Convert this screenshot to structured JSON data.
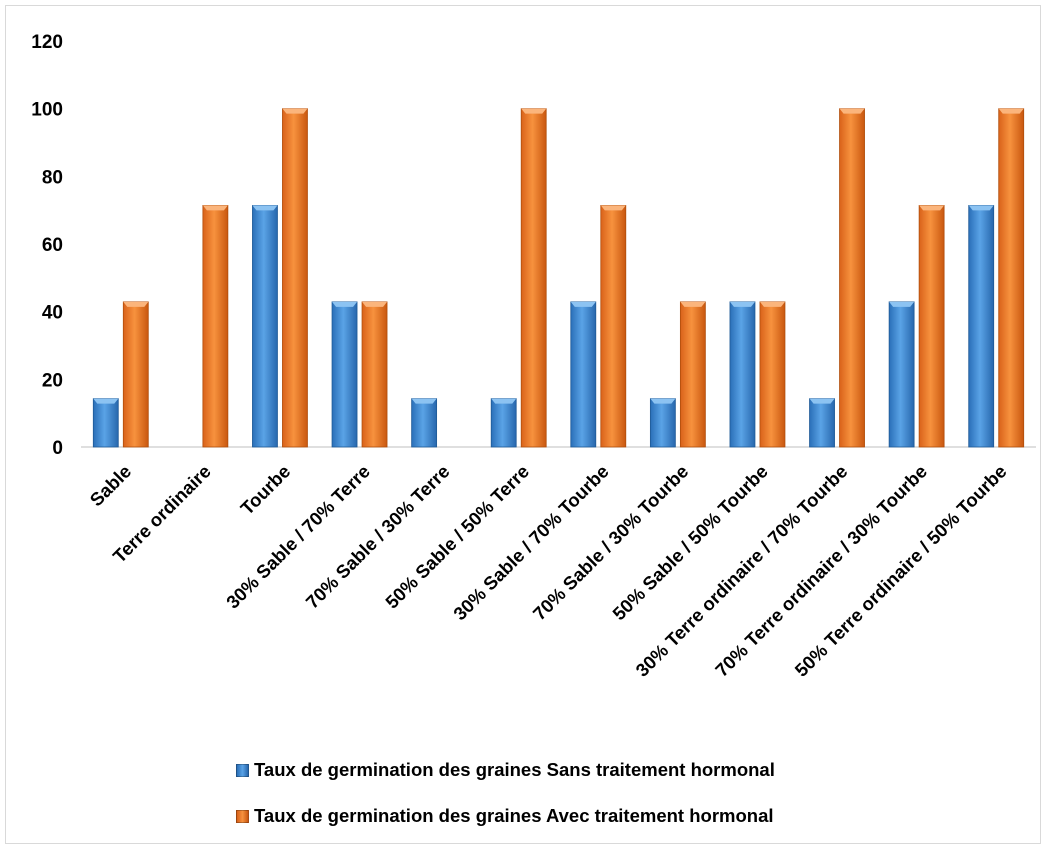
{
  "chart_data": {
    "type": "bar",
    "categories": [
      "Sable",
      "Terre ordinaire",
      "Tourbe",
      "30% Sable / 70% Terre",
      "70% Sable / 30% Terre",
      "50% Sable / 50% Terre",
      "30% Sable / 70% Tourbe",
      "70% Sable / 30% Tourbe",
      "50% Sable / 50% Tourbe",
      "30% Terre ordinaire / 70% Tourbe",
      "70% Terre ordinaire / 30% Tourbe",
      "50% Terre ordinaire / 50% Tourbe"
    ],
    "series": [
      {
        "name": "Taux de germination des graines  Sans traitement hormonal",
        "color": "#3d85c6",
        "values": [
          14.3,
          0,
          71.4,
          42.9,
          14.3,
          14.3,
          42.9,
          14.3,
          42.9,
          14.3,
          42.9,
          71.4
        ]
      },
      {
        "name": "Taux de germination des graines  Avec traitement hormonal",
        "color": "#ed7d31",
        "values": [
          42.9,
          71.4,
          100,
          42.9,
          0,
          100,
          71.4,
          42.9,
          42.9,
          100,
          71.4,
          100
        ]
      }
    ],
    "yticks": [
      "0",
      "20",
      "40",
      "60",
      "80",
      "100",
      "120"
    ],
    "ylim": [
      0,
      120
    ],
    "grid": false,
    "legend_position": "bottom"
  }
}
